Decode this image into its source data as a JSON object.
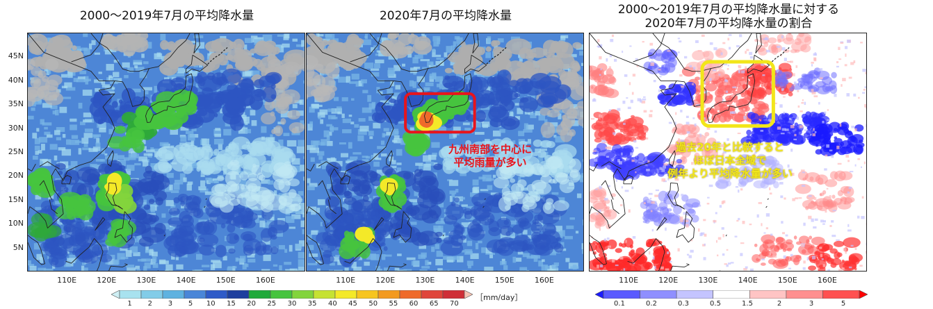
{
  "panels": [
    {
      "title": "2000〜2019年7月の平均降水量"
    },
    {
      "title": "2020年7月の平均降水量",
      "annotation_lines": [
        "九州南部を中心に",
        "平均雨量が多い"
      ]
    },
    {
      "title_lines": [
        "2000〜2019年7月の平均降水量に対する",
        "2020年7月の平均降水量の割合"
      ],
      "annotation_lines": [
        "過去20年と比較すると",
        "ほぼ日本全域で",
        "例年より平均降水量が多い"
      ]
    }
  ],
  "lat_labels": [
    "45N",
    "40N",
    "35N",
    "30N",
    "25N",
    "20N",
    "15N",
    "10N",
    "5N"
  ],
  "lon_labels": [
    "110E",
    "120E",
    "130E",
    "140E",
    "150E",
    "160E"
  ],
  "precip_colorbar": {
    "labels": [
      "1",
      "2",
      "3",
      "5",
      "10",
      "15",
      "20",
      "25",
      "30",
      "35",
      "40",
      "45",
      "50",
      "55",
      "60",
      "65",
      "70"
    ],
    "unit": "［mm/day］",
    "colors": [
      "#cfeff4",
      "#a8e2ef",
      "#82cce8",
      "#5fb2e0",
      "#4a86d8",
      "#2f5bc8",
      "#1e3f9e",
      "#1faa3a",
      "#46c43e",
      "#83d43c",
      "#c6e232",
      "#f4e928",
      "#f7c51f",
      "#f39a1f",
      "#ef6a2a",
      "#e0453a",
      "#cf2e36",
      "#f5c1b2"
    ]
  },
  "ratio_colorbar": {
    "labels": [
      "0.1",
      "0.2",
      "0.3",
      "0.5",
      "1.5",
      "2",
      "3",
      "5"
    ],
    "colors": [
      "#1a1aff",
      "#5a5aff",
      "#8f8fff",
      "#c4c4ff",
      "#ffffff",
      "#ffc4c4",
      "#ff8f8f",
      "#ff5050",
      "#ff0000"
    ]
  },
  "accent": {
    "red_box": "#e8141c",
    "yellow_box": "#f2e61a"
  }
}
